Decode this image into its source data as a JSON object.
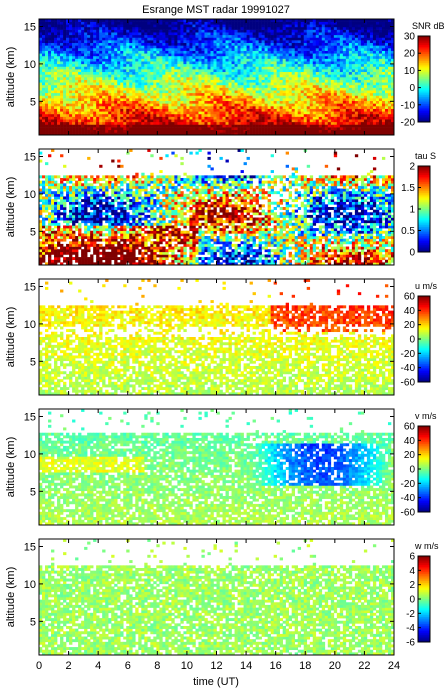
{
  "figure": {
    "title": "Esrange MST radar 19991027",
    "xlabel": "time (UT)"
  },
  "chart_data": [
    {
      "type": "heatmap",
      "ylabel": "altitude (km)",
      "xlim": [
        0,
        24
      ],
      "ylim": [
        0.5,
        16
      ],
      "x_ticks": [
        "0",
        "2",
        "4",
        "6",
        "8",
        "10",
        "12",
        "14",
        "16",
        "18",
        "20",
        "22",
        "24"
      ],
      "y_ticks": [
        "5",
        "10",
        "15"
      ],
      "colorbar": {
        "label": "SNR dB",
        "range": [
          -20,
          30
        ],
        "ticks": [
          "30",
          "20",
          "10",
          "0",
          "-10",
          "-20"
        ]
      }
    },
    {
      "type": "heatmap",
      "ylabel": "altitude (km)",
      "xlim": [
        0,
        24
      ],
      "ylim": [
        0.5,
        16
      ],
      "x_ticks": [
        "0",
        "2",
        "4",
        "6",
        "8",
        "10",
        "12",
        "14",
        "16",
        "18",
        "20",
        "22",
        "24"
      ],
      "y_ticks": [
        "5",
        "10",
        "15"
      ],
      "colorbar": {
        "label": "tau S",
        "range": [
          0,
          2
        ],
        "ticks": [
          "2",
          "1.5",
          "1",
          "0.5",
          "0"
        ]
      }
    },
    {
      "type": "heatmap",
      "ylabel": "altitude (km)",
      "xlim": [
        0,
        24
      ],
      "ylim": [
        0.5,
        16
      ],
      "x_ticks": [
        "0",
        "2",
        "4",
        "6",
        "8",
        "10",
        "12",
        "14",
        "16",
        "18",
        "20",
        "22",
        "24"
      ],
      "y_ticks": [
        "5",
        "10",
        "15"
      ],
      "colorbar": {
        "label": "u m/s",
        "range": [
          -60,
          60
        ],
        "ticks": [
          "60",
          "40",
          "20",
          "0",
          "-20",
          "-40",
          "-60"
        ]
      }
    },
    {
      "type": "heatmap",
      "ylabel": "altitude (km)",
      "xlim": [
        0,
        24
      ],
      "ylim": [
        0.5,
        16
      ],
      "x_ticks": [
        "0",
        "2",
        "4",
        "6",
        "8",
        "10",
        "12",
        "14",
        "16",
        "18",
        "20",
        "22",
        "24"
      ],
      "y_ticks": [
        "5",
        "10",
        "15"
      ],
      "colorbar": {
        "label": "v m/s",
        "range": [
          -60,
          60
        ],
        "ticks": [
          "60",
          "40",
          "20",
          "0",
          "-20",
          "-40",
          "-60"
        ]
      }
    },
    {
      "type": "heatmap",
      "ylabel": "altitude (km)",
      "xlim": [
        0,
        24
      ],
      "ylim": [
        0.5,
        16
      ],
      "x_ticks": [
        "0",
        "2",
        "4",
        "6",
        "8",
        "10",
        "12",
        "14",
        "16",
        "18",
        "20",
        "22",
        "24"
      ],
      "y_ticks": [
        "5",
        "10",
        "15"
      ],
      "colorbar": {
        "label": "w m/s",
        "range": [
          -6,
          6
        ],
        "ticks": [
          "6",
          "4",
          "2",
          "0",
          "-2",
          "-4",
          "-6"
        ]
      }
    }
  ]
}
